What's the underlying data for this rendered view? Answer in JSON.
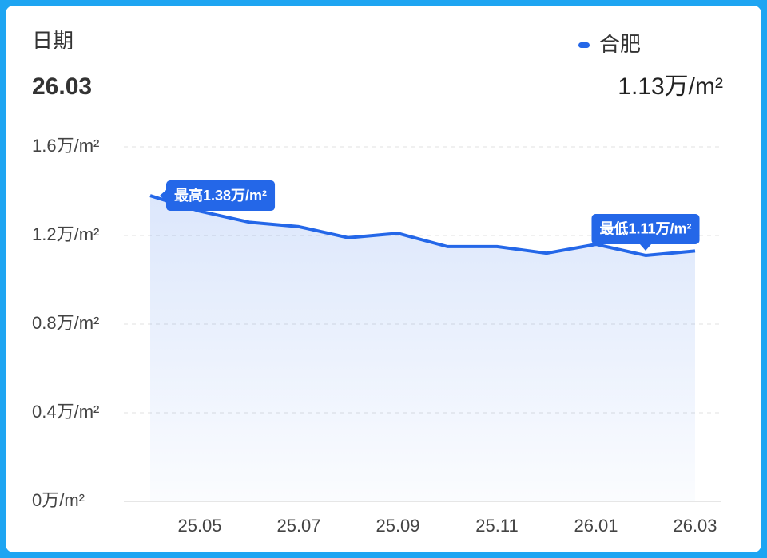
{
  "chart_data": {
    "type": "line",
    "header": {
      "date_label": "日期",
      "date": "26.03",
      "value": "1.13万/m²"
    },
    "categories": [
      null,
      "25.05",
      null,
      "25.07",
      null,
      "25.09",
      null,
      "25.11",
      null,
      "26.01",
      null,
      "26.03"
    ],
    "series": [
      {
        "name": "合肥",
        "color": "#2467e8",
        "values": [
          1.38,
          1.31,
          1.26,
          1.24,
          1.19,
          1.21,
          1.15,
          1.15,
          1.12,
          1.16,
          1.11,
          1.13
        ],
        "value_labels": [
          "最高1.38万/m²",
          null,
          null,
          null,
          null,
          null,
          null,
          null,
          null,
          null,
          "最低1.11万/m²",
          null
        ]
      }
    ],
    "ylim": [
      0,
      1.6
    ],
    "yticks": [
      {
        "value": 0,
        "label": "0万/m²"
      },
      {
        "value": 0.4,
        "label": "0.4万/m²"
      },
      {
        "value": 0.8,
        "label": "0.8万/m²"
      },
      {
        "value": 1.2,
        "label": "1.2万/m²"
      },
      {
        "value": 1.6,
        "label": "1.6万/m²"
      }
    ],
    "grid": true
  }
}
